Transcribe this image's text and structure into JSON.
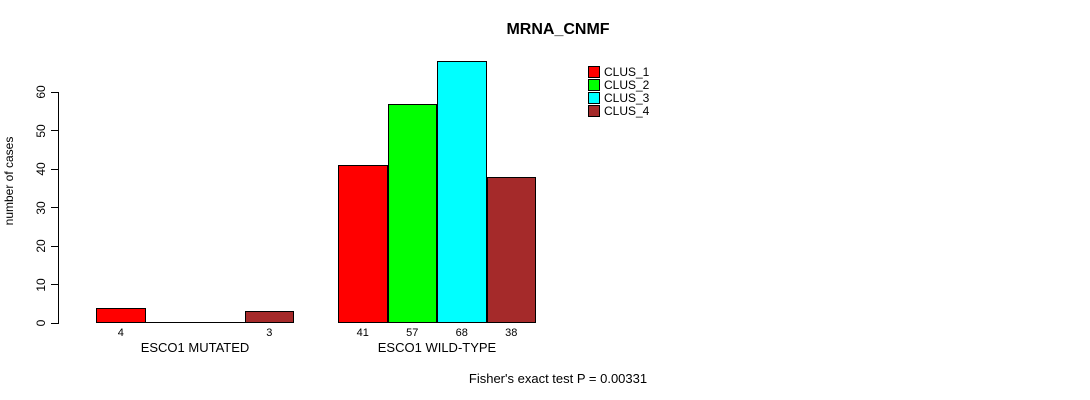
{
  "title": "MRNA_CNMF",
  "chart_data": {
    "type": "bar",
    "title": "MRNA_CNMF",
    "ylabel": "number of cases",
    "xlabel": "",
    "categories": [
      "ESCO1 MUTATED",
      "ESCO1 WILD-TYPE"
    ],
    "series": [
      {
        "name": "CLUS_1",
        "color": "#ff0000",
        "values": [
          4,
          41
        ]
      },
      {
        "name": "CLUS_2",
        "color": "#00ff00",
        "values": [
          0,
          57
        ]
      },
      {
        "name": "CLUS_3",
        "color": "#00ffff",
        "values": [
          0,
          68
        ]
      },
      {
        "name": "CLUS_4",
        "color": "#a52a2a",
        "values": [
          3,
          38
        ]
      }
    ],
    "bar_value_labels": {
      "shown": true,
      "hidden_when_zero": true
    },
    "ylim": [
      0,
      60
    ],
    "yticks": [
      0,
      10,
      20,
      30,
      40,
      50,
      60
    ],
    "grid": false,
    "legend": {
      "position": "top-right",
      "entries": [
        {
          "label": "CLUS_1",
          "color": "#ff0000"
        },
        {
          "label": "CLUS_2",
          "color": "#00ff00"
        },
        {
          "label": "CLUS_3",
          "color": "#00ffff"
        },
        {
          "label": "CLUS_4",
          "color": "#a52a2a"
        }
      ]
    },
    "annotation": "Fisher's exact test P = 0.00331"
  },
  "colors": {
    "axis": "#000000",
    "background": "#ffffff"
  }
}
